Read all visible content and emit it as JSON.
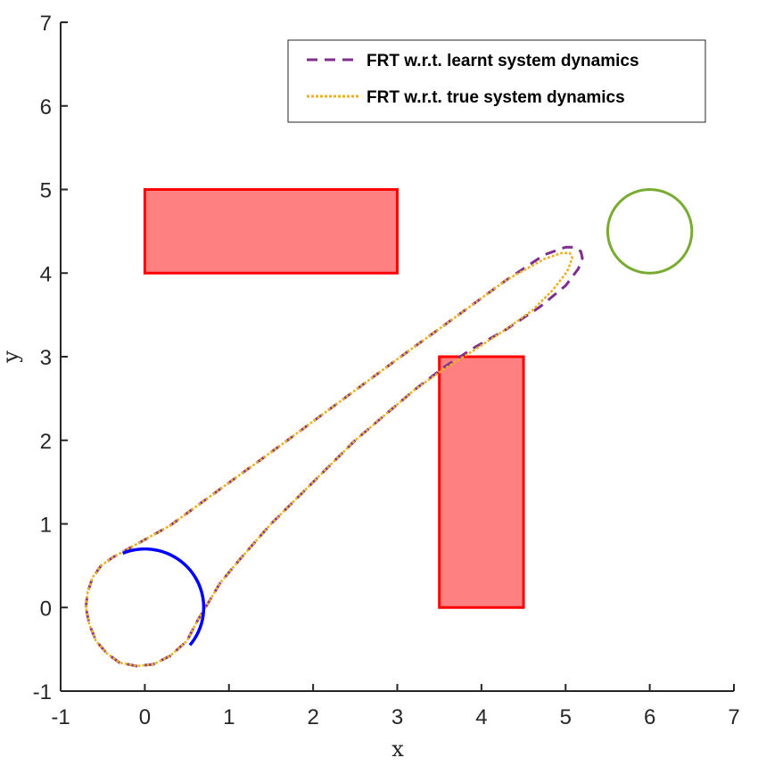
{
  "chart_data": {
    "type": "line",
    "xlabel": "x",
    "ylabel": "y",
    "xlim": [
      -1,
      7
    ],
    "ylim": [
      -1,
      7
    ],
    "xticks": [
      "-1",
      "0",
      "1",
      "2",
      "3",
      "4",
      "5",
      "6",
      "7"
    ],
    "yticks": [
      "-1",
      "0",
      "1",
      "2",
      "3",
      "4",
      "5",
      "6",
      "7"
    ],
    "grid": false,
    "legend": {
      "position": "top-right"
    },
    "obstacles": [
      {
        "x": [
          0,
          3
        ],
        "y": [
          4,
          5
        ],
        "fill": "#ff8080",
        "edge": "#ff0000"
      },
      {
        "x": [
          3.5,
          4.5
        ],
        "y": [
          0,
          3
        ],
        "fill": "#ff8080",
        "edge": "#ff0000"
      }
    ],
    "start_set": {
      "center": [
        0,
        0
      ],
      "radius": 0.7,
      "color": "#0000ff"
    },
    "target_set": {
      "center": [
        6,
        4.5
      ],
      "radius": 0.5,
      "color": "#77ac30"
    },
    "series": [
      {
        "name": "FRT w.r.t. learnt system dynamics",
        "color": "#7e2f8e",
        "style": "dashed",
        "x": [
          -0.7,
          -0.68,
          -0.62,
          -0.52,
          -0.38,
          -0.2,
          0.3,
          0.9,
          1.6,
          2.3,
          3.0,
          3.7,
          4.3,
          4.75,
          5.0,
          5.1,
          5.18,
          5.2,
          5.15,
          5.0,
          4.7,
          4.3,
          3.9,
          3.55,
          3.2,
          2.5,
          2.0,
          1.5,
          1.15,
          0.9,
          0.75,
          0.63,
          0.5,
          0.3,
          0.1,
          -0.1,
          -0.3,
          -0.45,
          -0.58,
          -0.66,
          -0.7
        ],
        "y": [
          0.0,
          0.18,
          0.36,
          0.5,
          0.6,
          0.7,
          0.98,
          1.42,
          1.93,
          2.45,
          2.97,
          3.48,
          3.92,
          4.22,
          4.31,
          4.31,
          4.26,
          4.18,
          4.05,
          3.85,
          3.6,
          3.33,
          3.1,
          2.87,
          2.6,
          2.0,
          1.5,
          1.0,
          0.6,
          0.3,
          0.05,
          -0.15,
          -0.4,
          -0.58,
          -0.68,
          -0.7,
          -0.66,
          -0.55,
          -0.4,
          -0.2,
          0.0
        ]
      },
      {
        "name": "FRT w.r.t. true system dynamics",
        "color": "#edb120",
        "style": "dotted",
        "x": [
          -0.7,
          -0.68,
          -0.62,
          -0.52,
          -0.38,
          -0.2,
          0.3,
          0.9,
          1.6,
          2.3,
          3.0,
          3.7,
          4.3,
          4.75,
          4.95,
          5.05,
          5.08,
          5.02,
          4.85,
          4.6,
          4.25,
          3.9,
          3.55,
          3.2,
          2.5,
          2.0,
          1.5,
          1.15,
          0.9,
          0.75,
          0.63,
          0.5,
          0.3,
          0.1,
          -0.1,
          -0.3,
          -0.45,
          -0.58,
          -0.66,
          -0.7
        ],
        "y": [
          0.0,
          0.18,
          0.36,
          0.5,
          0.6,
          0.7,
          0.98,
          1.42,
          1.93,
          2.45,
          2.97,
          3.48,
          3.92,
          4.17,
          4.24,
          4.24,
          4.18,
          4.02,
          3.8,
          3.55,
          3.3,
          3.07,
          2.85,
          2.6,
          2.0,
          1.5,
          1.0,
          0.6,
          0.3,
          0.05,
          -0.15,
          -0.4,
          -0.58,
          -0.68,
          -0.7,
          -0.66,
          -0.55,
          -0.4,
          -0.2,
          0.0
        ]
      }
    ]
  }
}
